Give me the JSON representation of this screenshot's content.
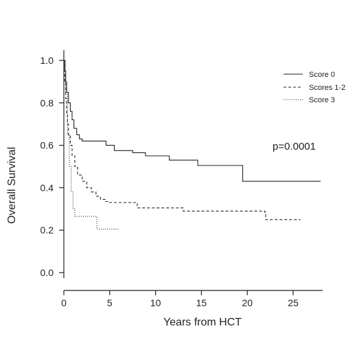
{
  "chart_data": {
    "type": "line",
    "title": "",
    "xlabel": "Years from HCT",
    "ylabel": "Overall Survival",
    "xlim": [
      0,
      28
    ],
    "ylim": [
      0,
      1.0
    ],
    "x_ticks": [
      "0",
      "5",
      "10",
      "15",
      "20",
      "25"
    ],
    "y_ticks": [
      "0.0",
      "0.2",
      "0.4",
      "0.6",
      "0.8",
      "1.0"
    ],
    "grid": false,
    "legend_position": "top-right",
    "annotation": "p=0.0001",
    "series": [
      {
        "name": "Score 0",
        "line_style": "solid",
        "x": [
          0,
          0.1,
          0.2,
          0.3,
          0.5,
          0.7,
          0.9,
          1.1,
          1.4,
          1.7,
          2.0,
          4.6,
          5.5,
          7.5,
          8.9,
          11.5,
          14.6,
          19.4,
          19.5,
          28.0
        ],
        "y": [
          1.0,
          0.95,
          0.9,
          0.85,
          0.8,
          0.76,
          0.72,
          0.68,
          0.65,
          0.63,
          0.62,
          0.6,
          0.575,
          0.565,
          0.55,
          0.53,
          0.505,
          0.505,
          0.43,
          0.43
        ]
      },
      {
        "name": "Scores 1-2",
        "line_style": "dashed",
        "x": [
          0,
          0.1,
          0.2,
          0.3,
          0.4,
          0.5,
          0.7,
          0.9,
          1.2,
          1.5,
          2.0,
          2.5,
          3.0,
          3.5,
          4.0,
          4.5,
          5.0,
          8.0,
          13.0,
          21.9,
          22.0,
          25.8
        ],
        "y": [
          1.0,
          0.9,
          0.82,
          0.75,
          0.7,
          0.65,
          0.6,
          0.55,
          0.5,
          0.46,
          0.43,
          0.4,
          0.38,
          0.36,
          0.345,
          0.335,
          0.33,
          0.305,
          0.29,
          0.285,
          0.25,
          0.25
        ]
      },
      {
        "name": "Score 3",
        "line_style": "dotted",
        "x": [
          0,
          0.2,
          0.4,
          0.6,
          0.8,
          1.0,
          1.2,
          3.5,
          3.6,
          6.0
        ],
        "y": [
          1.0,
          0.85,
          0.65,
          0.5,
          0.38,
          0.3,
          0.265,
          0.265,
          0.205,
          0.205
        ]
      }
    ]
  }
}
